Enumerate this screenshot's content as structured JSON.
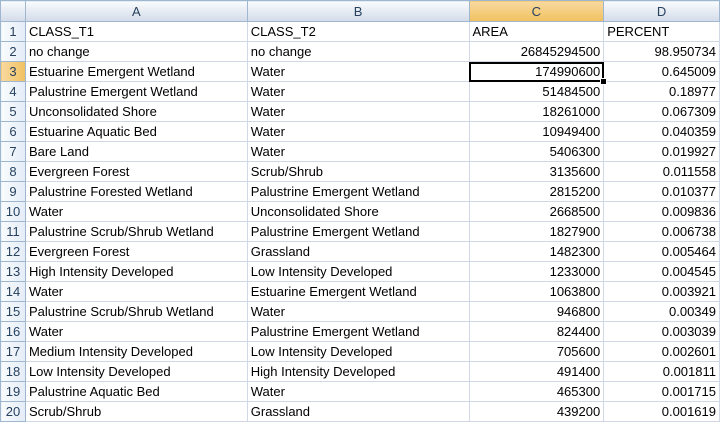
{
  "columns": [
    "A",
    "B",
    "C",
    "D"
  ],
  "active_cell": "C3",
  "rows": [
    {
      "n": "1",
      "a": "CLASS_T1",
      "b": "CLASS_T2",
      "c": "AREA",
      "d": "PERCENT"
    },
    {
      "n": "2",
      "a": "no change",
      "b": "no change",
      "c": "26845294500",
      "d": "98.950734"
    },
    {
      "n": "3",
      "a": "Estuarine Emergent Wetland",
      "b": "Water",
      "c": "174990600",
      "d": "0.645009"
    },
    {
      "n": "4",
      "a": "Palustrine Emergent Wetland",
      "b": "Water",
      "c": "51484500",
      "d": "0.18977"
    },
    {
      "n": "5",
      "a": "Unconsolidated Shore",
      "b": "Water",
      "c": "18261000",
      "d": "0.067309"
    },
    {
      "n": "6",
      "a": "Estuarine Aquatic Bed",
      "b": "Water",
      "c": "10949400",
      "d": "0.040359"
    },
    {
      "n": "7",
      "a": "Bare Land",
      "b": "Water",
      "c": "5406300",
      "d": "0.019927"
    },
    {
      "n": "8",
      "a": "Evergreen Forest",
      "b": "Scrub/Shrub",
      "c": "3135600",
      "d": "0.011558"
    },
    {
      "n": "9",
      "a": "Palustrine Forested Wetland",
      "b": "Palustrine Emergent Wetland",
      "c": "2815200",
      "d": "0.010377"
    },
    {
      "n": "10",
      "a": "Water",
      "b": "Unconsolidated Shore",
      "c": "2668500",
      "d": "0.009836"
    },
    {
      "n": "11",
      "a": "Palustrine Scrub/Shrub Wetland",
      "b": "Palustrine Emergent Wetland",
      "c": "1827900",
      "d": "0.006738"
    },
    {
      "n": "12",
      "a": "Evergreen Forest",
      "b": "Grassland",
      "c": "1482300",
      "d": "0.005464"
    },
    {
      "n": "13",
      "a": "High Intensity Developed",
      "b": "Low Intensity Developed",
      "c": "1233000",
      "d": "0.004545"
    },
    {
      "n": "14",
      "a": "Water",
      "b": "Estuarine Emergent Wetland",
      "c": "1063800",
      "d": "0.003921"
    },
    {
      "n": "15",
      "a": "Palustrine Scrub/Shrub Wetland",
      "b": "Water",
      "c": "946800",
      "d": "0.00349"
    },
    {
      "n": "16",
      "a": "Water",
      "b": "Palustrine Emergent Wetland",
      "c": "824400",
      "d": "0.003039"
    },
    {
      "n": "17",
      "a": "Medium Intensity Developed",
      "b": "Low Intensity Developed",
      "c": "705600",
      "d": "0.002601"
    },
    {
      "n": "18",
      "a": "Low Intensity Developed",
      "b": "High Intensity Developed",
      "c": "491400",
      "d": "0.001811"
    },
    {
      "n": "19",
      "a": "Palustrine Aquatic Bed",
      "b": "Water",
      "c": "465300",
      "d": "0.001715"
    },
    {
      "n": "20",
      "a": "Scrub/Shrub",
      "b": "Grassland",
      "c": "439200",
      "d": "0.001619"
    }
  ]
}
